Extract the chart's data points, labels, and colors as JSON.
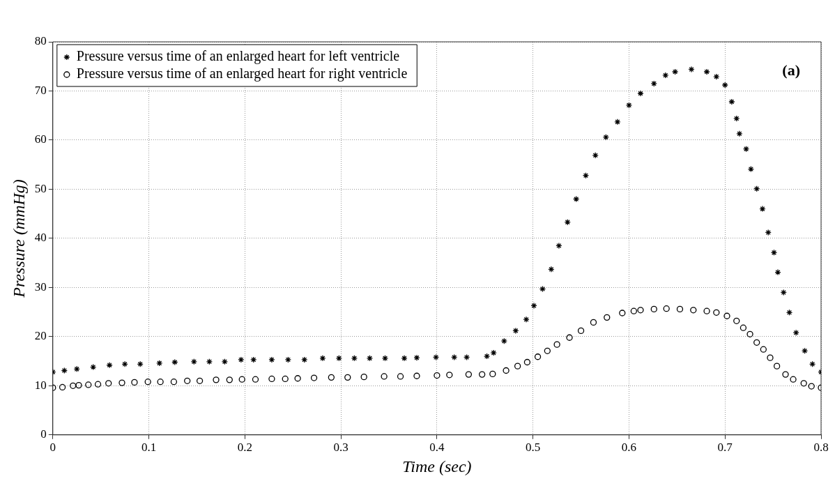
{
  "chart_data": {
    "type": "scatter",
    "xlabel": "Time (sec)",
    "ylabel": "Pressure (mmHg)",
    "annotations": [
      "(a)"
    ],
    "xlim": [
      0,
      0.8
    ],
    "ylim": [
      0,
      80
    ],
    "xticks": [
      0,
      0.1,
      0.2,
      0.3,
      0.4,
      0.5,
      0.6,
      0.7,
      0.8
    ],
    "yticks": [
      0,
      10,
      20,
      30,
      40,
      50,
      60,
      70,
      80
    ],
    "grid": true,
    "legend": "top left",
    "series": [
      {
        "name": "Pressure versus time of an enlarged heart for left ventricle",
        "color": "#000000",
        "marker": "cross",
        "x": [
          0,
          0.012,
          0.025,
          0.042,
          0.059,
          0.075,
          0.091,
          0.111,
          0.127,
          0.147,
          0.163,
          0.179,
          0.196,
          0.209,
          0.228,
          0.245,
          0.262,
          0.281,
          0.298,
          0.314,
          0.33,
          0.346,
          0.366,
          0.379,
          0.399,
          0.418,
          0.431,
          0.452,
          0.459,
          0.47,
          0.482,
          0.493,
          0.501,
          0.51,
          0.519,
          0.527,
          0.536,
          0.545,
          0.555,
          0.565,
          0.576,
          0.588,
          0.6,
          0.612,
          0.626,
          0.638,
          0.648,
          0.665,
          0.681,
          0.691,
          0.7,
          0.707,
          0.712,
          0.715,
          0.722,
          0.727,
          0.733,
          0.739,
          0.745,
          0.751,
          0.755,
          0.761,
          0.767,
          0.774,
          0.783,
          0.791,
          0.8
        ],
        "values": [
          12.8,
          13.1,
          13.4,
          13.8,
          14.2,
          14.4,
          14.4,
          14.6,
          14.8,
          14.9,
          14.9,
          14.9,
          15.3,
          15.3,
          15.3,
          15.3,
          15.3,
          15.6,
          15.6,
          15.6,
          15.6,
          15.6,
          15.6,
          15.7,
          15.8,
          15.8,
          15.8,
          16.0,
          16.7,
          19.1,
          21.2,
          23.5,
          26.3,
          29.7,
          33.7,
          38.5,
          43.3,
          48.0,
          52.8,
          56.9,
          60.6,
          63.7,
          67.1,
          69.5,
          71.5,
          73.2,
          73.9,
          74.4,
          73.9,
          72.9,
          71.2,
          67.8,
          64.4,
          61.3,
          58.2,
          54.1,
          50.1,
          46.0,
          41.2,
          37.1,
          33.1,
          29.0,
          24.9,
          20.8,
          17.1,
          14.4,
          12.8
        ]
      },
      {
        "name": "Pressure versus time of an enlarged heart for right ventricle",
        "color": "#000000",
        "marker": "circle",
        "x": [
          0,
          0.01,
          0.021,
          0.027,
          0.037,
          0.047,
          0.058,
          0.072,
          0.085,
          0.099,
          0.112,
          0.126,
          0.14,
          0.153,
          0.17,
          0.184,
          0.197,
          0.211,
          0.228,
          0.242,
          0.255,
          0.272,
          0.29,
          0.307,
          0.324,
          0.345,
          0.362,
          0.379,
          0.4,
          0.413,
          0.433,
          0.447,
          0.458,
          0.472,
          0.484,
          0.494,
          0.505,
          0.515,
          0.525,
          0.538,
          0.55,
          0.563,
          0.577,
          0.593,
          0.605,
          0.612,
          0.626,
          0.639,
          0.653,
          0.667,
          0.681,
          0.691,
          0.702,
          0.712,
          0.719,
          0.726,
          0.733,
          0.74,
          0.747,
          0.754,
          0.763,
          0.771,
          0.782,
          0.79,
          0.8
        ],
        "values": [
          9.6,
          9.7,
          10.0,
          10.1,
          10.2,
          10.3,
          10.5,
          10.6,
          10.7,
          10.8,
          10.8,
          10.8,
          11.0,
          11.0,
          11.2,
          11.2,
          11.3,
          11.3,
          11.4,
          11.4,
          11.5,
          11.6,
          11.7,
          11.7,
          11.8,
          11.9,
          11.9,
          12.0,
          12.1,
          12.2,
          12.3,
          12.3,
          12.4,
          13.1,
          14.0,
          14.8,
          15.9,
          17.1,
          18.4,
          19.8,
          21.2,
          22.9,
          23.9,
          24.8,
          25.2,
          25.4,
          25.6,
          25.7,
          25.6,
          25.4,
          25.2,
          24.9,
          24.2,
          23.2,
          21.8,
          20.5,
          18.8,
          17.4,
          15.7,
          14.0,
          12.3,
          11.3,
          10.5,
          9.9,
          9.6
        ]
      }
    ]
  }
}
